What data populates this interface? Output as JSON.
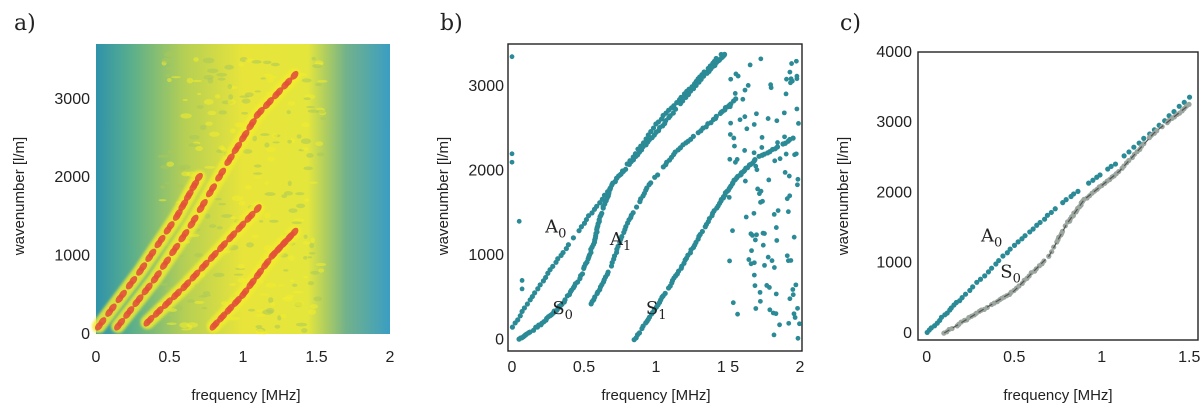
{
  "colors": {
    "dispersion_dots": "#2a8a96",
    "computed_dash": "#9aa69e",
    "heat_background": "#3fa0ad",
    "heat_mid": "#c7d64e",
    "heat_high": "#f2ec2e",
    "heat_peak": "#e2513a"
  },
  "chart_data": [
    {
      "type": "heatmap",
      "panel_label": "a)",
      "xlabel": "frequency [MHz]",
      "ylabel": "wavenumber [l/m]",
      "xlim": [
        0,
        2
      ],
      "ylim": [
        0,
        3700
      ],
      "x_ticks": [
        "0",
        "0.5",
        "1",
        "1.5",
        "2"
      ],
      "y_ticks": [
        "0",
        "1000",
        "2000",
        "3000"
      ],
      "grid": false,
      "ridges": [
        {
          "points": [
            [
              0.02,
              100
            ],
            [
              0.3,
              800
            ],
            [
              0.55,
              1500
            ],
            [
              0.7,
              2000
            ]
          ]
        },
        {
          "points": [
            [
              0.15,
              100
            ],
            [
              0.4,
              700
            ],
            [
              0.65,
              1400
            ],
            [
              0.9,
              2200
            ],
            [
              1.1,
              2800
            ],
            [
              1.35,
              3300
            ]
          ]
        },
        {
          "points": [
            [
              0.35,
              150
            ],
            [
              0.6,
              600
            ],
            [
              0.85,
              1100
            ],
            [
              1.1,
              1600
            ]
          ]
        },
        {
          "points": [
            [
              0.8,
              100
            ],
            [
              1.0,
              500
            ],
            [
              1.2,
              1000
            ],
            [
              1.35,
              1300
            ]
          ]
        }
      ]
    },
    {
      "type": "scatter",
      "panel_label": "b)",
      "xlabel": "frequency [MHz]",
      "ylabel": "wavenumber [l/m]",
      "xlim": [
        0,
        2
      ],
      "ylim": [
        -100,
        3500
      ],
      "x_ticks": [
        "0",
        "0.5",
        "1",
        "1 5",
        "2"
      ],
      "y_ticks": [
        "0",
        "1000",
        "2000",
        "3000"
      ],
      "grid": false,
      "modes": [
        {
          "name": "A",
          "sub": "0",
          "label_at": [
            0.23,
            1270
          ],
          "points": [
            [
              0,
              150
            ],
            [
              0.25,
              780
            ],
            [
              0.5,
              1380
            ],
            [
              0.75,
              1950
            ],
            [
              1.0,
              2550
            ],
            [
              1.25,
              3000
            ],
            [
              1.45,
              3380
            ]
          ]
        },
        {
          "name": "S",
          "sub": "0",
          "label_at": [
            0.28,
            300
          ],
          "points": [
            [
              0.05,
              0
            ],
            [
              0.2,
              180
            ],
            [
              0.35,
              420
            ],
            [
              0.48,
              750
            ],
            [
              0.57,
              1150
            ],
            [
              0.62,
              1500
            ],
            [
              0.7,
              1850
            ],
            [
              0.9,
              2250
            ],
            [
              1.1,
              2650
            ],
            [
              1.35,
              3150
            ],
            [
              1.48,
              3380
            ]
          ]
        },
        {
          "name": "A",
          "sub": "1",
          "label_at": [
            0.68,
            1120
          ],
          "points": [
            [
              0.55,
              420
            ],
            [
              0.68,
              830
            ],
            [
              0.8,
              1380
            ],
            [
              0.95,
              1830
            ],
            [
              1.15,
              2250
            ],
            [
              1.4,
              2600
            ],
            [
              1.55,
              2850
            ]
          ]
        },
        {
          "name": "S",
          "sub": "1",
          "label_at": [
            0.93,
            300
          ],
          "points": [
            [
              0.85,
              0
            ],
            [
              1.0,
              380
            ],
            [
              1.15,
              780
            ],
            [
              1.3,
              1220
            ],
            [
              1.45,
              1640
            ],
            [
              1.55,
              1900
            ],
            [
              1.7,
              2150
            ],
            [
              1.95,
              2380
            ]
          ]
        }
      ],
      "scatter_noise_region": {
        "x": [
          1.5,
          2.0
        ],
        "y": [
          0,
          3400
        ]
      }
    },
    {
      "type": "scatter",
      "panel_label": "c)",
      "xlabel": "frequency [MHz]",
      "ylabel": "wavenumber [l/m]",
      "xlim": [
        -0.05,
        1.55
      ],
      "ylim": [
        -100,
        4000
      ],
      "x_ticks": [
        "0",
        "0.5",
        "1",
        "1.5"
      ],
      "y_ticks": [
        "0",
        "1000",
        "2000",
        "3000",
        "4000"
      ],
      "grid": false,
      "modes": [
        {
          "name": "A",
          "sub": "0",
          "label_at": [
            0.31,
            1300
          ],
          "points": [
            [
              0,
              0
            ],
            [
              0.2,
              500
            ],
            [
              0.5,
              1250
            ],
            [
              0.8,
              1900
            ],
            [
              1.1,
              2450
            ],
            [
              1.5,
              3350
            ]
          ]
        },
        {
          "name": "S",
          "sub": "0",
          "label_at": [
            0.42,
            790
          ],
          "points": [
            [
              0.1,
              0
            ],
            [
              0.3,
              300
            ],
            [
              0.5,
              600
            ],
            [
              0.7,
              1100
            ],
            [
              0.8,
              1550
            ],
            [
              0.9,
              1900
            ],
            [
              1.1,
              2300
            ],
            [
              1.3,
              2850
            ],
            [
              1.5,
              3250
            ]
          ]
        }
      ]
    }
  ]
}
